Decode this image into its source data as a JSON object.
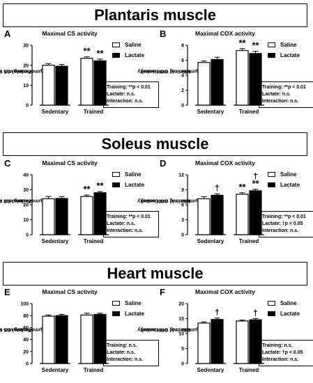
{
  "banners": {
    "plantaris": "Plantaris muscle",
    "soleus": "Soleus muscle",
    "heart": "Heart muscle"
  },
  "legend": {
    "saline": "Saline",
    "lactate": "Lactate"
  },
  "colors": {
    "saline": "#ffffff",
    "lactate": "#000000",
    "stroke": "#000000"
  },
  "panels": {
    "A": {
      "letter": "A",
      "title": "Maximal CS activity",
      "ylabel1": "Maximal CS activity",
      "ylabel2": "(μmol/min/g wet tissue)",
      "stats": [
        "Training: **p < 0.01",
        "Lactate: n.s.",
        "Interaction: n.s."
      ]
    },
    "B": {
      "letter": "B",
      "title": "Maximal COX activity",
      "ylabel1": "Maximal COX activity",
      "ylabel2": "(μmol/min/g wet tissue)",
      "stats": [
        "Training: **p < 0.01",
        "Lactate: n.s.",
        "Interaction: n.s."
      ]
    },
    "C": {
      "letter": "C",
      "title": "Maximal CS activity",
      "ylabel1": "Maximal CS activity",
      "ylabel2": "(μmol/min/g wet tissue)",
      "stats": [
        "Training: **p < 0.01",
        "Lactate: n.s.",
        "Interaction: n.s."
      ]
    },
    "D": {
      "letter": "D",
      "title": "Maximal COX activity",
      "ylabel1": "Maximal COX activity",
      "ylabel2": "(μmol/min/g wet tissue)",
      "stats": [
        "Training: **p < 0.01",
        "Lactate: †p < 0.05",
        "Interaction: n.s."
      ]
    },
    "E": {
      "letter": "E",
      "title": "Maximal CS activity",
      "ylabel1": "Maximal CS activity",
      "ylabel2": "(μmol/min/g wet tissue)",
      "stats": [
        "Training: n.s.",
        "Lactate: n.s.",
        "Interaction: n.s."
      ]
    },
    "F": {
      "letter": "F",
      "title": "Maximal COX activity",
      "ylabel1": "Maximal COX activity",
      "ylabel2": "(μmol/min/g wet tissue)",
      "stats": [
        "Training: n.s.",
        "Lactate: †p < 0.05",
        "Interaction: n.s."
      ]
    }
  },
  "chart_data": [
    {
      "id": "A",
      "type": "bar",
      "categories": [
        "Sedentary",
        "Trained"
      ],
      "ylim": [
        0,
        30
      ],
      "yticks": [
        0,
        10,
        20,
        30
      ],
      "series": [
        {
          "name": "Saline",
          "values": [
            20.0,
            23.5
          ],
          "errors": [
            0.8,
            0.7
          ]
        },
        {
          "name": "Lactate",
          "values": [
            19.5,
            22.2
          ],
          "errors": [
            0.9,
            0.9
          ]
        }
      ],
      "annotations": [
        {
          "category": 1,
          "series": 0,
          "text": "**"
        },
        {
          "category": 1,
          "series": 1,
          "text": "**"
        }
      ]
    },
    {
      "id": "B",
      "type": "bar",
      "categories": [
        "Sedentary",
        "Trained"
      ],
      "ylim": [
        0,
        8
      ],
      "yticks": [
        0,
        2,
        4,
        6,
        8
      ],
      "series": [
        {
          "name": "Saline",
          "values": [
            5.7,
            7.3
          ],
          "errors": [
            0.2,
            0.25
          ]
        },
        {
          "name": "Lactate",
          "values": [
            6.1,
            6.9
          ],
          "errors": [
            0.3,
            0.3
          ]
        }
      ],
      "annotations": [
        {
          "category": 1,
          "series": 0,
          "text": "**"
        },
        {
          "category": 1,
          "series": 1,
          "text": "**"
        }
      ]
    },
    {
      "id": "C",
      "type": "bar",
      "categories": [
        "Sedentary",
        "Trained"
      ],
      "ylim": [
        0,
        40
      ],
      "yticks": [
        0,
        10,
        20,
        30,
        40
      ],
      "series": [
        {
          "name": "Saline",
          "values": [
            24.0,
            25.5
          ],
          "errors": [
            1.5,
            1.0
          ]
        },
        {
          "name": "Lactate",
          "values": [
            24.2,
            28.0
          ],
          "errors": [
            1.3,
            0.8
          ]
        }
      ],
      "annotations": [
        {
          "category": 1,
          "series": 0,
          "text": "**"
        },
        {
          "category": 1,
          "series": 1,
          "text": "**"
        }
      ]
    },
    {
      "id": "D",
      "type": "bar",
      "categories": [
        "Sedentary",
        "Trained"
      ],
      "ylim": [
        0,
        12
      ],
      "yticks": [
        0,
        3,
        6,
        9,
        12
      ],
      "series": [
        {
          "name": "Saline",
          "values": [
            7.2,
            8.1
          ],
          "errors": [
            0.4,
            0.3
          ]
        },
        {
          "name": "Lactate",
          "values": [
            7.9,
            8.8
          ],
          "errors": [
            0.3,
            0.3
          ]
        }
      ],
      "annotations": [
        {
          "category": 0,
          "series": 1,
          "text": "†"
        },
        {
          "category": 1,
          "series": 0,
          "text": "**"
        },
        {
          "category": 1,
          "series": 1,
          "text": "**"
        },
        {
          "category": 1,
          "series": 1,
          "text": "†",
          "level": 2
        }
      ]
    },
    {
      "id": "E",
      "type": "bar",
      "categories": [
        "Sedentary",
        "Trained"
      ],
      "ylim": [
        0,
        100
      ],
      "yticks": [
        0,
        20,
        40,
        60,
        80,
        100
      ],
      "series": [
        {
          "name": "Saline",
          "values": [
            79,
            81
          ],
          "errors": [
            2,
            3
          ]
        },
        {
          "name": "Lactate",
          "values": [
            80,
            82
          ],
          "errors": [
            2,
            2
          ]
        }
      ],
      "annotations": []
    },
    {
      "id": "F",
      "type": "bar",
      "categories": [
        "Sedentary",
        "Trained"
      ],
      "ylim": [
        0,
        20
      ],
      "yticks": [
        0,
        5,
        10,
        15,
        20
      ],
      "series": [
        {
          "name": "Saline",
          "values": [
            13.5,
            14.2
          ],
          "errors": [
            0.4,
            0.3
          ]
        },
        {
          "name": "Lactate",
          "values": [
            14.7,
            14.6
          ],
          "errors": [
            0.5,
            0.4
          ]
        }
      ],
      "annotations": [
        {
          "category": 0,
          "series": 1,
          "text": "†"
        },
        {
          "category": 1,
          "series": 1,
          "text": "†"
        }
      ]
    }
  ]
}
